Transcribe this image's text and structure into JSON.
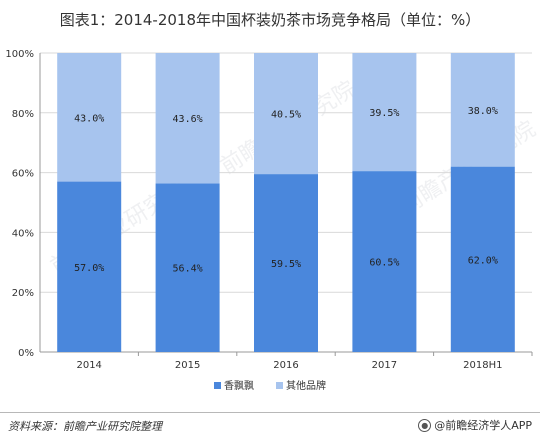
{
  "title": "图表1：2014-2018年中国杯装奶茶市场竞争格局（单位：%）",
  "footer": {
    "source": "资料来源：前瞻产业研究院整理",
    "brand": "@前瞻经济学人APP"
  },
  "watermark_text": "前瞻产业研究院",
  "colors": {
    "series1": "#4a87dc",
    "series2": "#a7c4ee",
    "grid": "#d9d9d9"
  },
  "chart_data": {
    "type": "bar",
    "stacked": true,
    "categories": [
      "2014",
      "2015",
      "2016",
      "2017",
      "2018H1"
    ],
    "series": [
      {
        "name": "香飘飘",
        "values": [
          57.0,
          56.4,
          59.5,
          60.5,
          62.0
        ],
        "labels": [
          "57.0%",
          "56.4%",
          "59.5%",
          "60.5%",
          "62.0%"
        ]
      },
      {
        "name": "其他品牌",
        "values": [
          43.0,
          43.6,
          40.5,
          39.5,
          38.0
        ],
        "labels": [
          "43.0%",
          "43.6%",
          "40.5%",
          "39.5%",
          "38.0%"
        ]
      }
    ],
    "yticks": [
      "0%",
      "20%",
      "40%",
      "60%",
      "80%",
      "100%"
    ],
    "ylim": [
      0,
      100
    ],
    "grid": true,
    "legend_position": "bottom"
  }
}
